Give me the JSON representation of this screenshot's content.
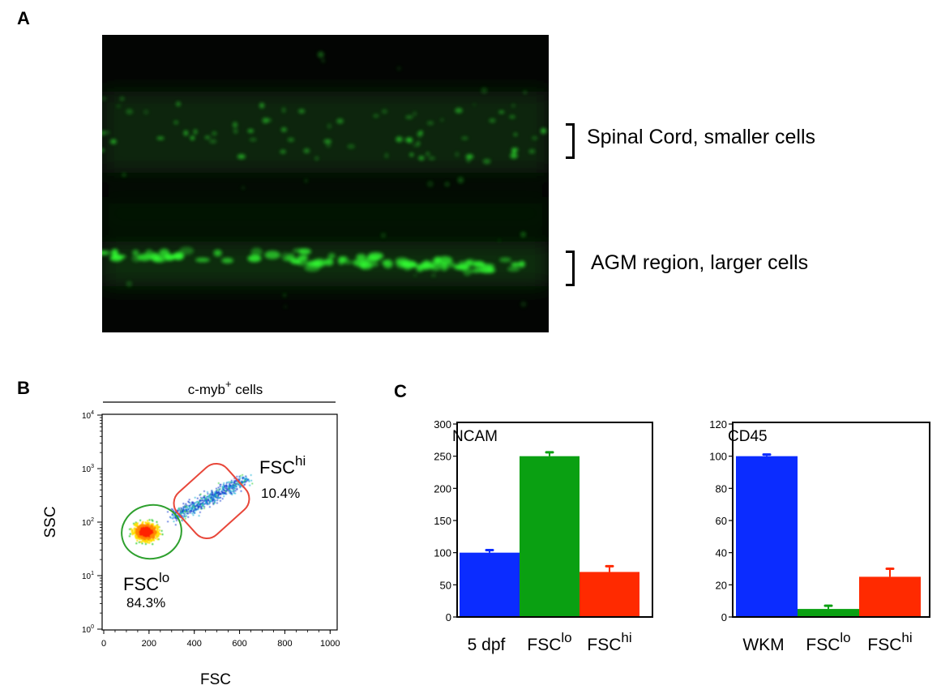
{
  "panels": {
    "a": {
      "letter": "A"
    },
    "b": {
      "letter": "B"
    },
    "c": {
      "letter": "C"
    }
  },
  "micrograph": {
    "annotations": [
      {
        "text": "Spinal Cord, smaller cells"
      },
      {
        "text": "AGM region, larger cells"
      }
    ],
    "colors": {
      "background": "#030503",
      "signal": "#33ff33"
    }
  },
  "flow": {
    "header": {
      "text": "c-myb",
      "sup": "+",
      "suffix": " cells"
    },
    "x_axis": {
      "label": "FSC",
      "ticks": [
        "0",
        "200",
        "400",
        "600",
        "800",
        "1000"
      ],
      "range": [
        0,
        1024
      ]
    },
    "y_axis": {
      "label": "SSC",
      "ticks": [
        {
          "base": "10",
          "exp": "0"
        },
        {
          "base": "10",
          "exp": "1"
        },
        {
          "base": "10",
          "exp": "2"
        },
        {
          "base": "10",
          "exp": "3"
        },
        {
          "base": "10",
          "exp": "4"
        }
      ],
      "scale": "log"
    },
    "gates": [
      {
        "name": "FSC",
        "sup": "lo",
        "percent": "84.3%",
        "color": "#2ea02e"
      },
      {
        "name": "FSC",
        "sup": "hi",
        "percent": "10.4%",
        "color": "#e8473a"
      }
    ]
  },
  "chart_data": [
    {
      "type": "bar",
      "title": "NCAM",
      "categories": [
        {
          "name": "5 dpf",
          "sup": ""
        },
        {
          "name": "FSC",
          "sup": "lo"
        },
        {
          "name": "FSC",
          "sup": "hi"
        }
      ],
      "values": [
        100,
        250,
        70
      ],
      "errors": [
        4,
        6,
        9
      ],
      "colors": [
        "#0b2cff",
        "#0aa012",
        "#ff2a00"
      ],
      "ylim": [
        0,
        300
      ],
      "yticks": [
        "0",
        "50",
        "100",
        "150",
        "200",
        "250",
        "300"
      ]
    },
    {
      "type": "bar",
      "title": "CD45",
      "categories": [
        {
          "name": "WKM",
          "sup": ""
        },
        {
          "name": "FSC",
          "sup": "lo"
        },
        {
          "name": "FSC",
          "sup": "hi"
        }
      ],
      "values": [
        100,
        5,
        25
      ],
      "errors": [
        1,
        2,
        5
      ],
      "colors": [
        "#0b2cff",
        "#0aa012",
        "#ff2a00"
      ],
      "ylim": [
        0,
        120
      ],
      "yticks": [
        "0",
        "20",
        "40",
        "60",
        "80",
        "100",
        "120"
      ]
    }
  ]
}
